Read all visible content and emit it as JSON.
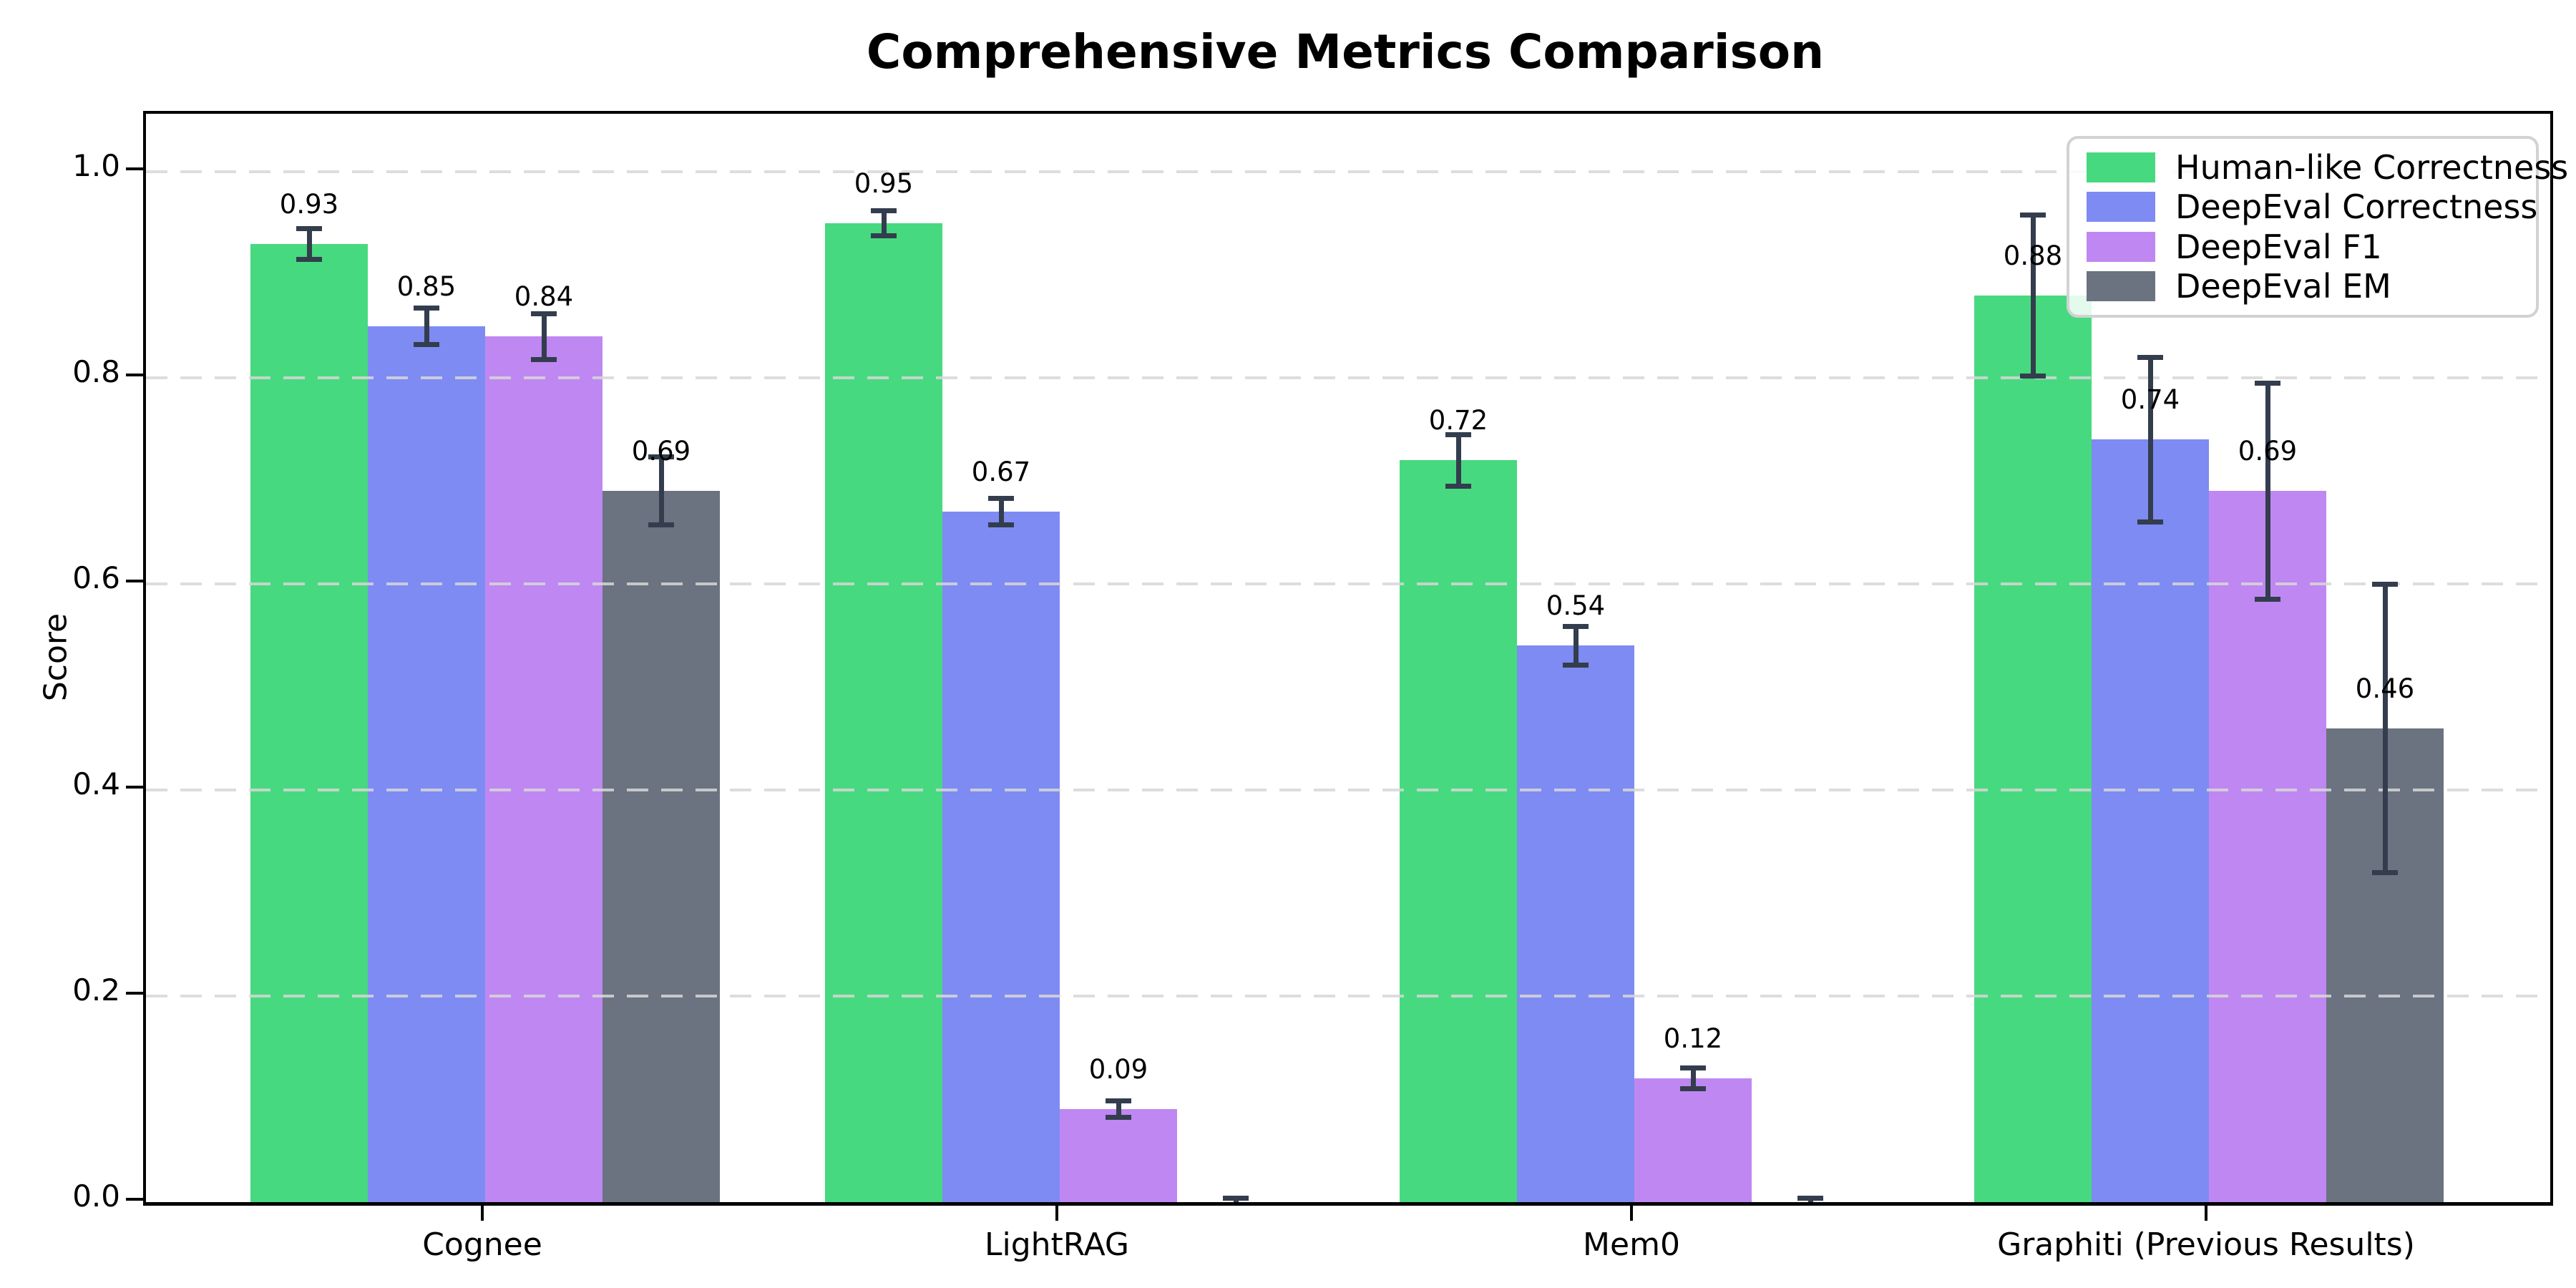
{
  "chart_data": {
    "type": "bar",
    "title": "Comprehensive Metrics Comparison",
    "xlabel": "",
    "ylabel": "Score",
    "categories": [
      "Cognee",
      "LightRAG",
      "Mem0",
      "Graphiti (Previous Results)"
    ],
    "series": [
      {
        "name": "Human-like Correctness",
        "color": "#47d97f",
        "values": [
          0.93,
          0.95,
          0.72,
          0.88
        ],
        "errors": [
          0.015,
          0.012,
          0.025,
          0.078
        ],
        "labels": [
          "0.93",
          "0.95",
          "0.72",
          "0.88"
        ]
      },
      {
        "name": "DeepEval Correctness",
        "color": "#7e8bf2",
        "values": [
          0.85,
          0.67,
          0.54,
          0.74
        ],
        "errors": [
          0.018,
          0.013,
          0.019,
          0.08
        ],
        "labels": [
          "0.85",
          "0.67",
          "0.54",
          "0.74"
        ]
      },
      {
        "name": "DeepEval F1",
        "color": "#bf87f2",
        "values": [
          0.84,
          0.09,
          0.12,
          0.69
        ],
        "errors": [
          0.022,
          0.008,
          0.01,
          0.105
        ],
        "labels": [
          "0.84",
          "0.09",
          "0.12",
          "0.69"
        ]
      },
      {
        "name": "DeepEval EM",
        "color": "#6b7280",
        "values": [
          0.69,
          0.0,
          0.0,
          0.46
        ],
        "errors": [
          0.033,
          0.004,
          0.004,
          0.14
        ],
        "labels": [
          "0.69",
          "",
          "",
          "0.46"
        ]
      }
    ],
    "yticks": [
      "0.0",
      "0.2",
      "0.4",
      "0.6",
      "0.8",
      "1.0"
    ],
    "ytick_values": [
      0.0,
      0.2,
      0.4,
      0.6,
      0.8,
      1.0
    ],
    "ylim": [
      0.0,
      1.056
    ],
    "grid": "horizontal-dashed",
    "legend_position": "upper-right",
    "error_bar_color": "#333d4d"
  }
}
